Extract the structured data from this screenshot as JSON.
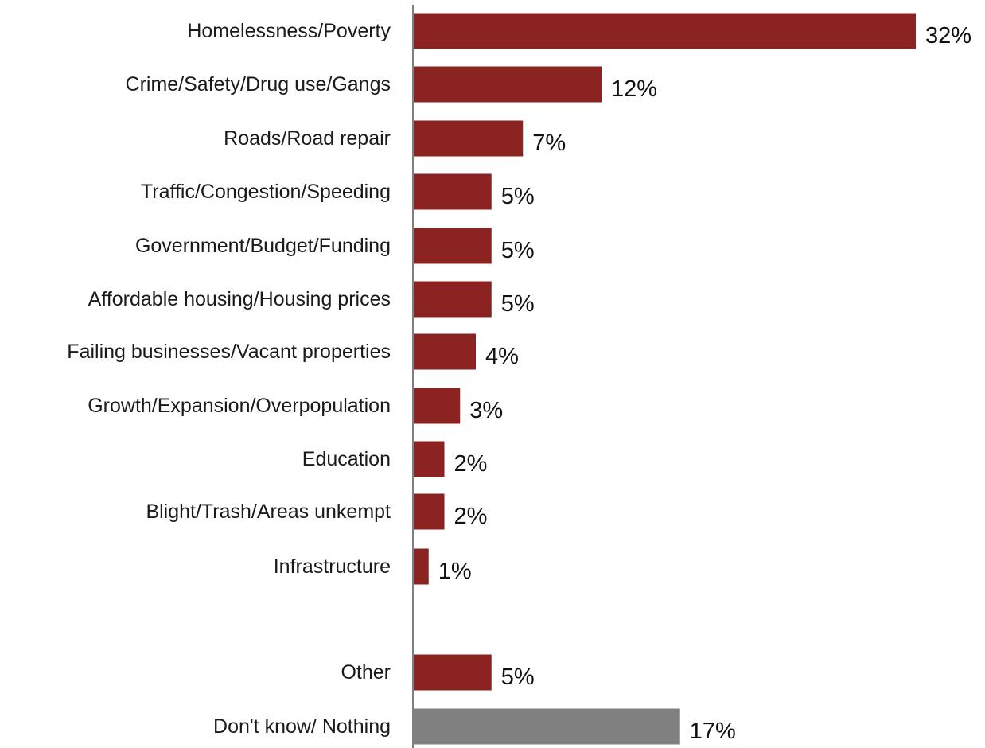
{
  "chart_data": {
    "type": "bar",
    "orientation": "horizontal",
    "title": "",
    "xlabel": "",
    "ylabel": "",
    "grid": false,
    "value_suffix": "%",
    "categories": [
      "Homelessness/Poverty",
      "Crime/Safety/Drug use/Gangs",
      "Roads/Road repair",
      "Traffic/Congestion/Speeding",
      "Government/Budget/Funding",
      "Affordable housing/Housing prices",
      "Failing businesses/Vacant properties",
      "Growth/Expansion/Overpopulation",
      "Education",
      "Blight/Trash/Areas unkempt",
      "Infrastructure",
      "Other",
      "Don't know/ Nothing"
    ],
    "values": [
      32,
      12,
      7,
      5,
      5,
      5,
      4,
      3,
      2,
      2,
      1,
      5,
      17
    ],
    "value_labels": [
      "32%",
      "12%",
      "7%",
      "5%",
      "5%",
      "5%",
      "4%",
      "3%",
      "2%",
      "2%",
      "1%",
      "5%",
      "17%"
    ],
    "bar_colors": [
      "#8b2323",
      "#8b2323",
      "#8b2323",
      "#8b2323",
      "#8b2323",
      "#8b2323",
      "#8b2323",
      "#8b2323",
      "#8b2323",
      "#8b2323",
      "#8b2323",
      "#8b2323",
      "#808080"
    ],
    "colors": {
      "primary": "#8b2323",
      "neutral": "#808080",
      "axis": "#808080"
    }
  }
}
